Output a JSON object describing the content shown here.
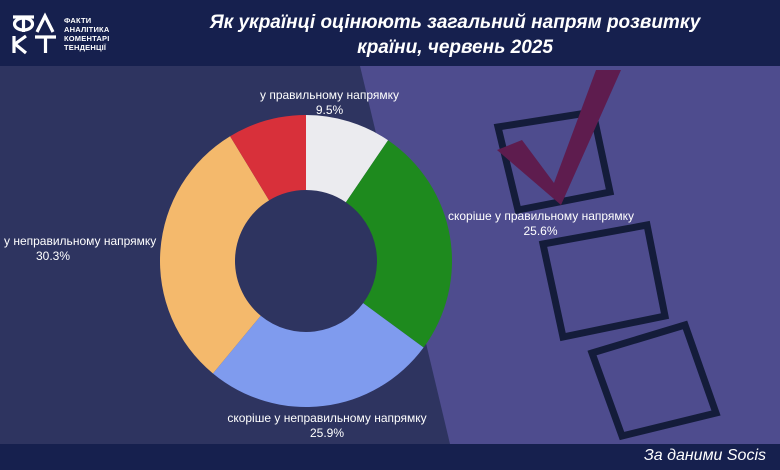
{
  "logo": {
    "mark": "ФАКТ",
    "lines": [
      "ФАКТИ",
      "АНАЛІТИКА",
      "КОМЕНТАРІ",
      "ТЕНДЕНЦІЇ"
    ]
  },
  "title_lines": [
    "Як українці оцінюють загальний напрям розвитку",
    "країни, червень 2025"
  ],
  "source": "За даними Socis",
  "colors": {
    "header_bg": "#16204e",
    "background": "#2e3460",
    "background_light": "#4e4c8e",
    "checkmark": "#5e1c4e",
    "text": "#ffffff"
  },
  "chart_data": {
    "type": "pie",
    "variant": "donut",
    "start_angle_deg": 0,
    "direction": "clockwise",
    "title": "Як українці оцінюють загальний напрям розвитку країни, червень 2025",
    "slices": [
      {
        "label": "у правильному напрямку",
        "value": 9.5,
        "display": "9.5%",
        "color": "#ebebef"
      },
      {
        "label": "скоріше у правильному напрямку",
        "value": 25.6,
        "display": "25.6%",
        "color": "#1e8a1e"
      },
      {
        "label": "скоріше у неправильному напрямку",
        "value": 25.9,
        "display": "25.9%",
        "color": "#7f9bee"
      },
      {
        "label": "у неправильному напрямку",
        "value": 30.3,
        "display": "30.3%",
        "color": "#f4b96c"
      },
      {
        "label": "",
        "value": 8.7,
        "display": "",
        "color": "#d8303a"
      }
    ],
    "legend": "none"
  }
}
